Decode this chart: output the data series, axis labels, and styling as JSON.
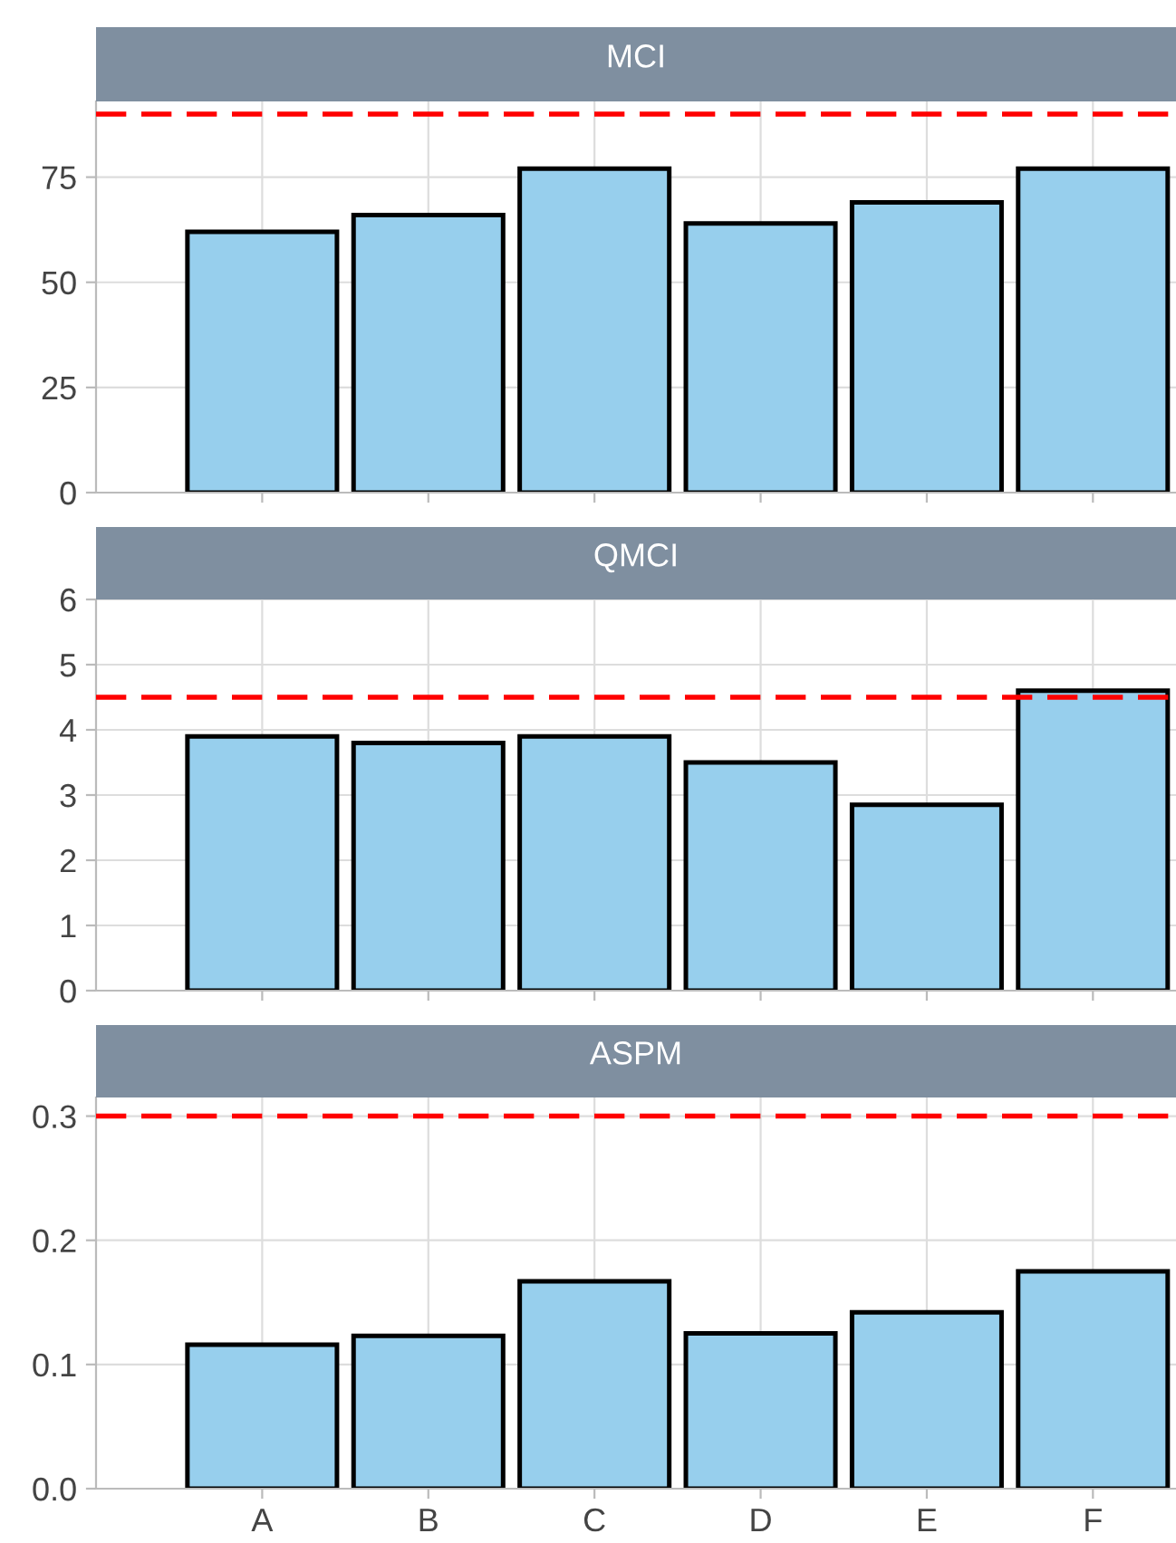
{
  "chart_data": [
    {
      "type": "bar",
      "title": "MCI",
      "categories": [
        null,
        null,
        null,
        null,
        null,
        null
      ],
      "values": [
        62,
        66,
        77,
        64,
        69,
        77
      ],
      "color": "#97cfed",
      "ylim": [
        0,
        93
      ],
      "yticks": [
        0,
        25,
        50,
        75
      ],
      "grid": true,
      "tick_labels": "y",
      "ref_lines": [
        {
          "axis": "y",
          "value": 90,
          "color": "#ff0000",
          "line_style": "dashed"
        }
      ]
    },
    {
      "type": "bar",
      "title": "QMCI",
      "categories": [
        null,
        null,
        null,
        null,
        null,
        null
      ],
      "values": [
        3.9,
        3.8,
        3.9,
        3.5,
        2.85,
        4.6
      ],
      "color": "#97cfed",
      "ylim": [
        0,
        6
      ],
      "yticks": [
        0,
        1,
        2,
        3,
        4,
        5,
        6
      ],
      "grid": true,
      "tick_labels": "y",
      "ref_lines": [
        {
          "axis": "y",
          "value": 4.5,
          "color": "#ff0000",
          "line_style": "dashed"
        }
      ]
    },
    {
      "type": "bar",
      "title": "ASPM",
      "categories": [
        "A",
        "B",
        "C",
        "D",
        "E",
        "F"
      ],
      "values": [
        0.116,
        0.123,
        0.167,
        0.125,
        0.142,
        0.175
      ],
      "color": "#97cfed",
      "ylim": [
        0,
        0.315
      ],
      "yticks": [
        {
          "value": 0,
          "label": "0.0"
        },
        0.1,
        0.2,
        0.3
      ],
      "grid": true,
      "ref_lines": [
        {
          "axis": "y",
          "value": 0.3,
          "color": "#ff0000",
          "line_style": "dashed"
        }
      ]
    }
  ]
}
